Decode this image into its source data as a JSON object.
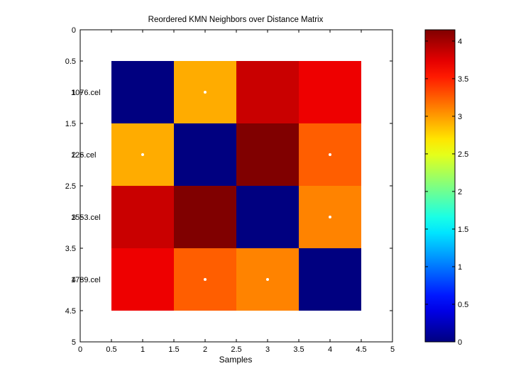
{
  "chart_data": {
    "type": "heatmap",
    "title": "Reordered KMN Neighbors over Distance Matrix",
    "xlabel": "Samples",
    "ylabel": "",
    "xlim": [
      0,
      5
    ],
    "ylim": [
      0,
      5
    ],
    "y_reversed": true,
    "x_ticks": [
      "0",
      "0.5",
      "1",
      "1.5",
      "2",
      "2.5",
      "3",
      "3.5",
      "4",
      "4.5",
      "5"
    ],
    "y_ticks": [
      "0",
      "0.5",
      "1.5",
      "2.5",
      "3.5",
      "4.5",
      "5"
    ],
    "row_labels": [
      "1076.cel",
      "126.cel",
      "1553.cel",
      "1789.cel"
    ],
    "row_labels_overlap_numeric_ticks": [
      "1",
      "2",
      "3",
      "4"
    ],
    "matrix": [
      [
        0.0,
        2.93,
        3.85,
        3.7
      ],
      [
        2.93,
        0.0,
        4.15,
        3.25
      ],
      [
        3.85,
        4.15,
        0.0,
        3.1
      ],
      [
        3.7,
        3.25,
        3.1,
        0.0
      ]
    ],
    "neighbor_markers": [
      {
        "row": 1,
        "col": 2
      },
      {
        "row": 2,
        "col": 1
      },
      {
        "row": 2,
        "col": 4
      },
      {
        "row": 3,
        "col": 4
      },
      {
        "row": 4,
        "col": 2
      },
      {
        "row": 4,
        "col": 3
      }
    ],
    "colormap": "jet",
    "clim": [
      0,
      4.15
    ],
    "colorbar_ticks": [
      "0",
      "0.5",
      "1",
      "1.5",
      "2",
      "2.5",
      "3",
      "3.5",
      "4"
    ],
    "grid": false,
    "marker_color": "#ffffff"
  }
}
